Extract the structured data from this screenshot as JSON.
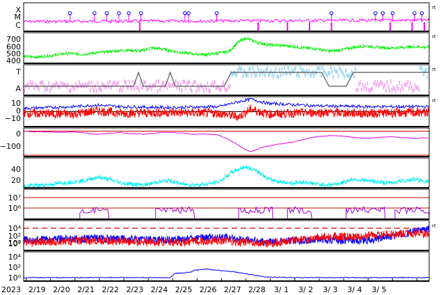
{
  "chart_data": {
    "type": "line",
    "title": "",
    "year_label": "2023",
    "x_ticks": [
      "2/19",
      "2/20",
      "2/21",
      "2/22",
      "2/23",
      "2/24",
      "2/25",
      "2/26",
      "2/27",
      "2/28",
      "3/ 1",
      "3/ 2",
      "3/ 3",
      "3/ 4",
      "3/ 5"
    ],
    "x_range_days": [
      0,
      16.6
    ],
    "corner_mark": "rt",
    "panels": [
      {
        "id": "xray-flare-class",
        "y_ticks": [
          "X",
          "M",
          "C"
        ],
        "colors": {
          "trace": "#ff00ff",
          "marker": "#0000ff"
        },
        "flare_markers_day": [
          1.9,
          2.9,
          3.4,
          3.9,
          4.3,
          4.8,
          6.6,
          6.75,
          7.9,
          12.6,
          14.4,
          14.7,
          15.1,
          16.0,
          16.3,
          16.95
        ]
      },
      {
        "id": "solar-wind-speed",
        "y_ticks": [
          "700",
          "600",
          "500",
          "400"
        ],
        "ylim": [
          320,
          780
        ],
        "colors": {
          "trace": "#00ee00"
        },
        "values_day_km_s": [
          [
            0,
            420
          ],
          [
            0.6,
            415
          ],
          [
            1.2,
            440
          ],
          [
            1.8,
            470
          ],
          [
            2.4,
            455
          ],
          [
            3.0,
            480
          ],
          [
            3.6,
            500
          ],
          [
            4.2,
            520
          ],
          [
            4.8,
            505
          ],
          [
            5.2,
            550
          ],
          [
            5.6,
            540
          ],
          [
            6.0,
            510
          ],
          [
            6.5,
            480
          ],
          [
            7.0,
            460
          ],
          [
            7.5,
            450
          ],
          [
            7.9,
            470
          ],
          [
            8.4,
            500
          ],
          [
            8.8,
            640
          ],
          [
            9.1,
            700
          ],
          [
            9.5,
            640
          ],
          [
            10.0,
            600
          ],
          [
            10.5,
            590
          ],
          [
            11.0,
            575
          ],
          [
            11.5,
            550
          ],
          [
            12.0,
            540
          ],
          [
            12.5,
            500
          ],
          [
            13.0,
            520
          ],
          [
            13.5,
            560
          ],
          [
            14.0,
            580
          ],
          [
            14.5,
            560
          ],
          [
            15.0,
            550
          ],
          [
            15.5,
            560
          ],
          [
            16.0,
            570
          ],
          [
            16.6,
            560
          ]
        ]
      },
      {
        "id": "imf-sector",
        "y_ticks": [
          "T",
          "A"
        ],
        "colors": {
          "toward": "#a8dcf5",
          "away": "#f5b0f0",
          "line": "#555555"
        }
      },
      {
        "id": "imf-bz-bt",
        "y_ticks": [
          "10",
          "0",
          "−10"
        ],
        "ylim": [
          -18,
          18
        ],
        "colors": {
          "bt": "#0000ff",
          "bz": "#ff0000"
        }
      },
      {
        "id": "dst-index",
        "y_ticks": [
          "0",
          "−100"
        ],
        "ylim": [
          -160,
          20
        ],
        "colors": {
          "trace": "#dd00dd",
          "ref": "#cc0000"
        },
        "values_day_nT": [
          [
            0,
            0
          ],
          [
            0.5,
            -3
          ],
          [
            1.0,
            -5
          ],
          [
            1.5,
            -8
          ],
          [
            2.0,
            -4
          ],
          [
            2.5,
            -10
          ],
          [
            3.0,
            -20
          ],
          [
            3.5,
            -12
          ],
          [
            4.0,
            -10
          ],
          [
            4.5,
            -15
          ],
          [
            5.0,
            -18
          ],
          [
            5.5,
            -10
          ],
          [
            6.0,
            -8
          ],
          [
            6.5,
            -12
          ],
          [
            7.0,
            -20
          ],
          [
            7.5,
            -18
          ],
          [
            8.0,
            -25
          ],
          [
            8.5,
            -60
          ],
          [
            9.0,
            -110
          ],
          [
            9.3,
            -130
          ],
          [
            9.8,
            -100
          ],
          [
            10.5,
            -80
          ],
          [
            11.0,
            -70
          ],
          [
            11.5,
            -50
          ],
          [
            12.0,
            -35
          ],
          [
            12.5,
            -28
          ],
          [
            13.0,
            -30
          ],
          [
            13.5,
            -40
          ],
          [
            14.0,
            -45
          ],
          [
            14.5,
            -40
          ],
          [
            15.0,
            -35
          ],
          [
            15.5,
            -40
          ],
          [
            16.0,
            -45
          ],
          [
            16.6,
            -40
          ]
        ]
      },
      {
        "id": "density",
        "y_ticks": [
          "40",
          "20"
        ],
        "ylim": [
          0,
          50
        ],
        "colors": {
          "trace": "#00eeee"
        },
        "values_day": [
          [
            0,
            3
          ],
          [
            0.5,
            4
          ],
          [
            1.0,
            5
          ],
          [
            1.5,
            8
          ],
          [
            2.0,
            10
          ],
          [
            2.5,
            12
          ],
          [
            3.0,
            18
          ],
          [
            3.5,
            14
          ],
          [
            4.0,
            8
          ],
          [
            4.5,
            6
          ],
          [
            5.0,
            5
          ],
          [
            5.5,
            10
          ],
          [
            6.0,
            12
          ],
          [
            6.5,
            6
          ],
          [
            7.0,
            5
          ],
          [
            7.5,
            6
          ],
          [
            8.0,
            10
          ],
          [
            8.5,
            25
          ],
          [
            9.0,
            35
          ],
          [
            9.5,
            30
          ],
          [
            10.0,
            15
          ],
          [
            10.5,
            10
          ],
          [
            11.0,
            8
          ],
          [
            11.5,
            10
          ],
          [
            12.0,
            6
          ],
          [
            12.5,
            5
          ],
          [
            13.0,
            8
          ],
          [
            13.5,
            15
          ],
          [
            14.0,
            12
          ],
          [
            14.5,
            10
          ],
          [
            15.0,
            8
          ],
          [
            15.5,
            12
          ],
          [
            16.0,
            14
          ],
          [
            16.6,
            10
          ]
        ]
      },
      {
        "id": "electron-flux",
        "y_ticks": [
          "10⁷",
          "10⁶"
        ],
        "colors": {
          "trace": "#9900cc",
          "ref": "#cc0000"
        }
      },
      {
        "id": "proton-flux",
        "y_ticks": [
          "10⁴",
          "10²",
          "10⁰",
          "10²"
        ],
        "colors": {
          "a": "#0000ff",
          "b": "#ff0000",
          "threshold": "#cc0000"
        }
      },
      {
        "id": "high-energy-proton",
        "y_ticks": [
          "10⁴",
          "10²",
          "10⁰"
        ],
        "colors": {
          "trace": "#0000ff"
        },
        "values_day_log": [
          [
            0,
            0
          ],
          [
            6.0,
            0
          ],
          [
            6.2,
            0.8
          ],
          [
            6.8,
            1.0
          ],
          [
            7.0,
            1.4
          ],
          [
            7.5,
            1.6
          ],
          [
            8.0,
            1.4
          ],
          [
            8.5,
            1.2
          ],
          [
            9.0,
            0.8
          ],
          [
            9.5,
            0.4
          ],
          [
            10.0,
            0.1
          ],
          [
            11.0,
            0
          ],
          [
            16.6,
            0
          ]
        ]
      }
    ]
  }
}
